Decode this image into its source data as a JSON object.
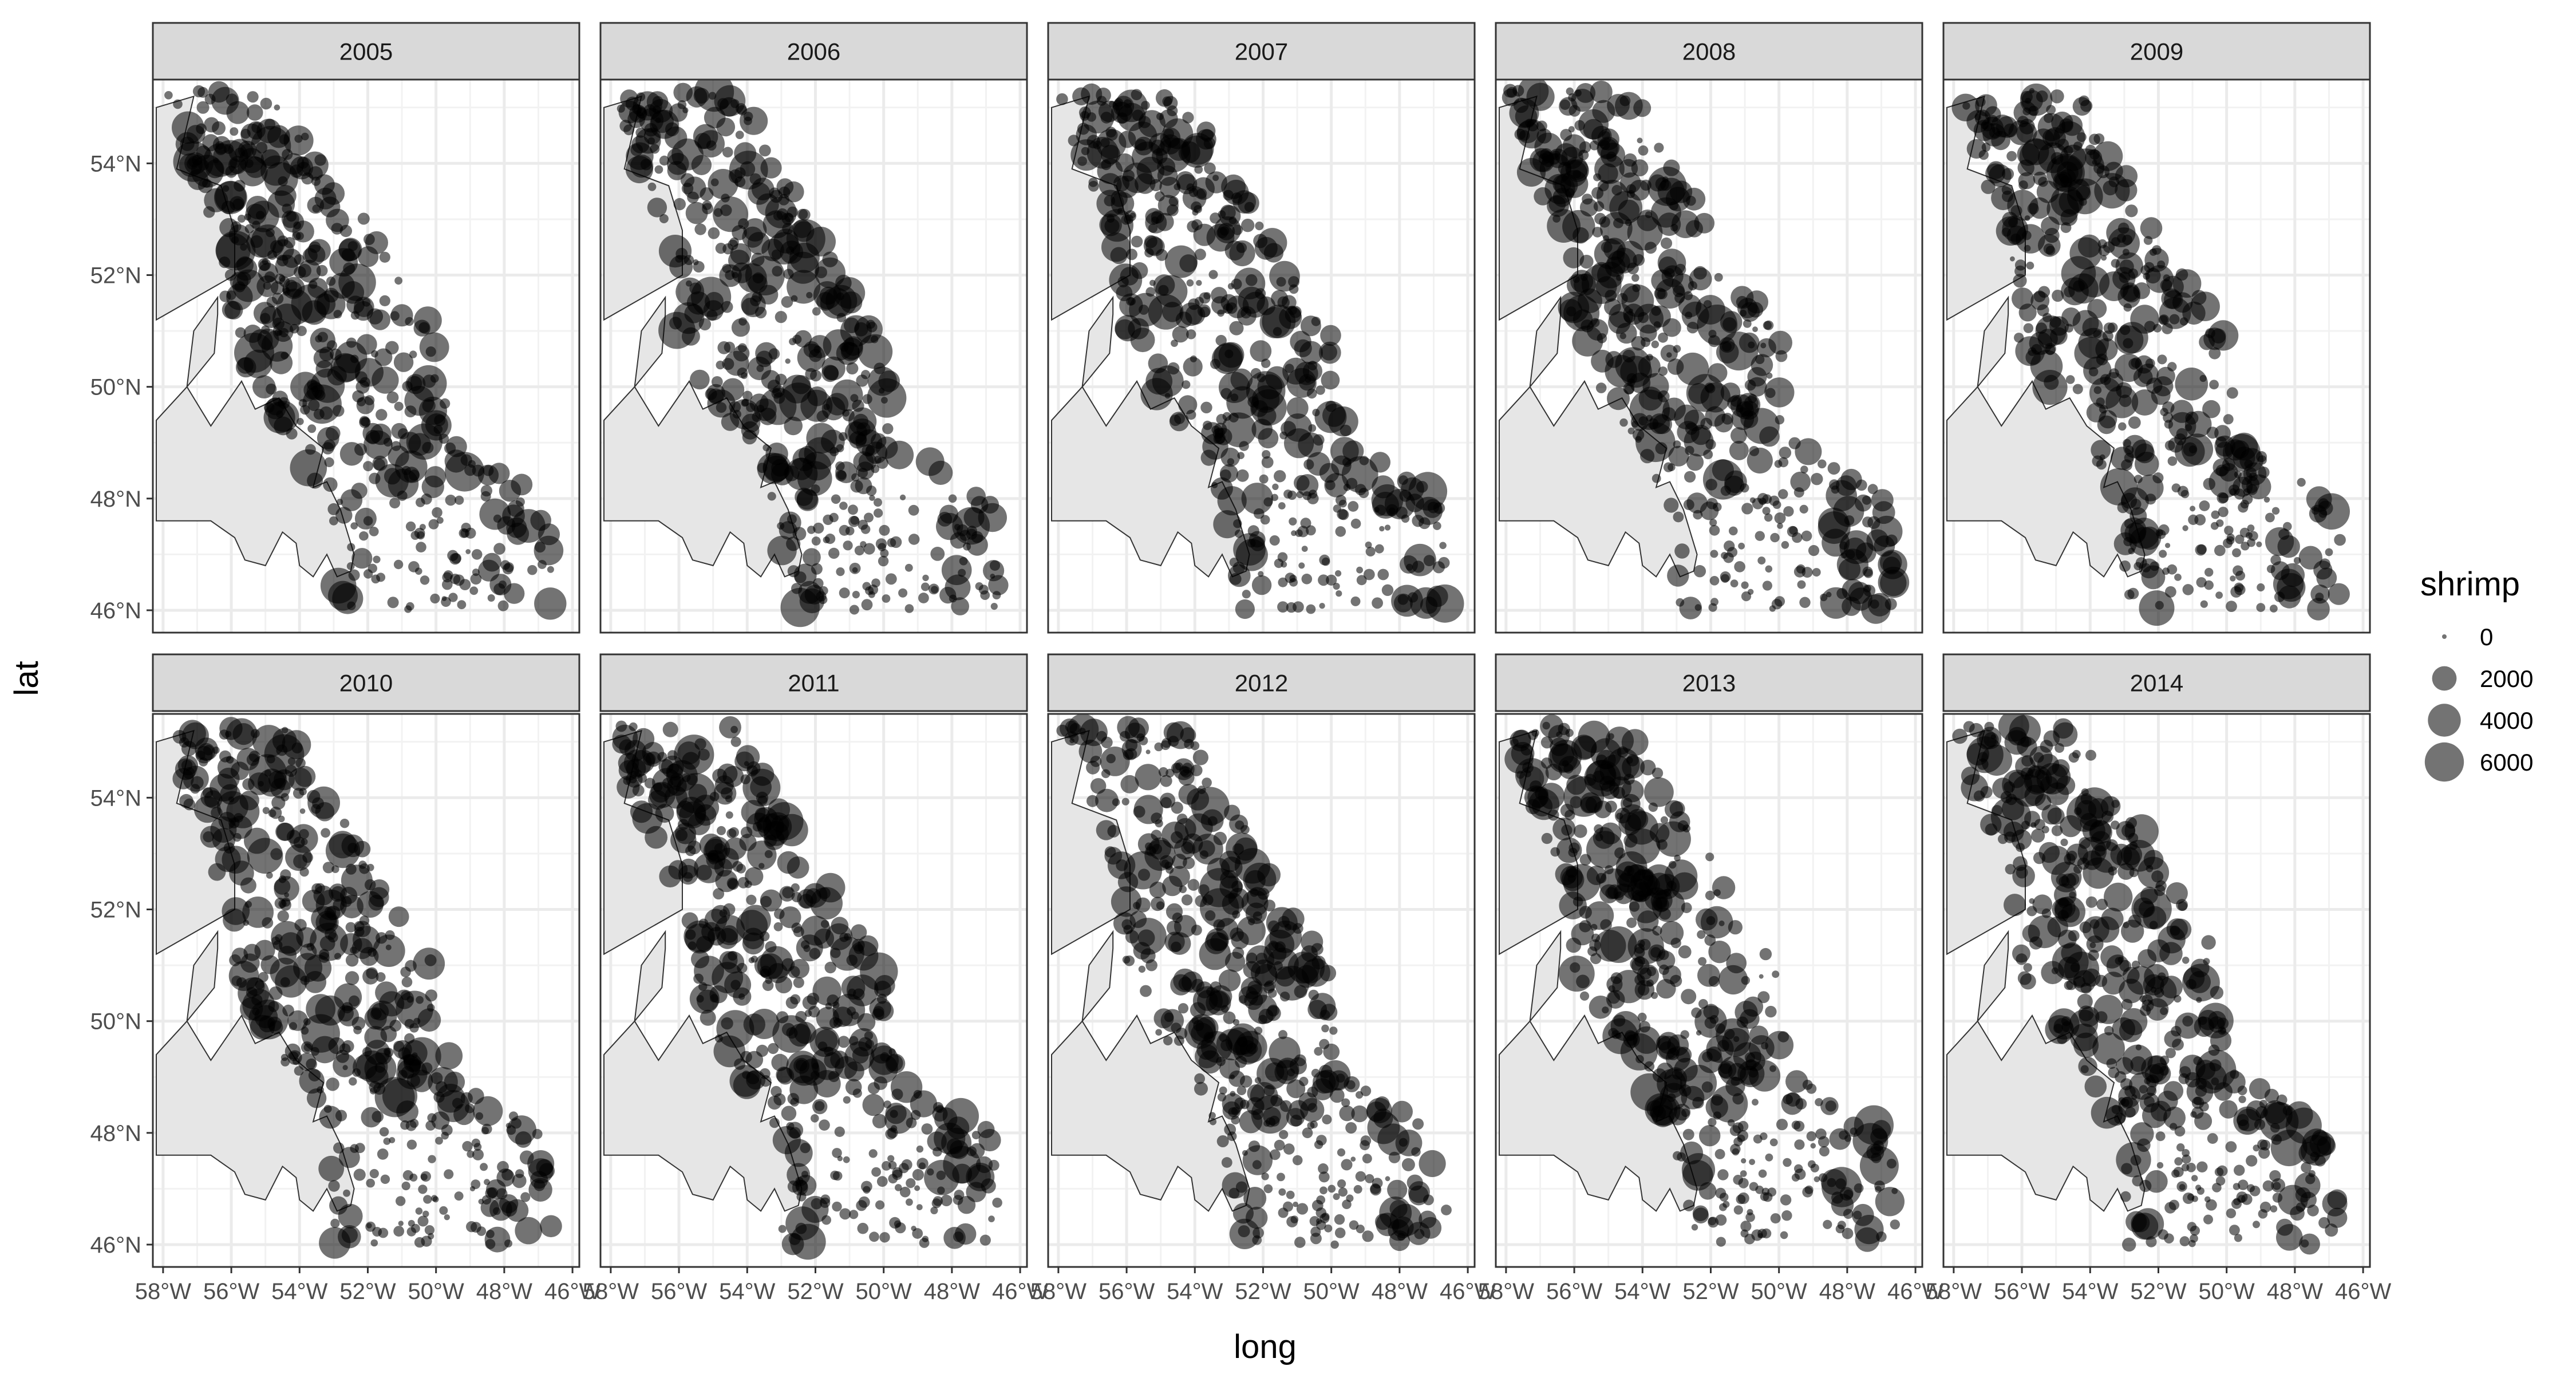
{
  "chart_data": {
    "type": "scatter",
    "facet_by": "year",
    "facets": [
      "2005",
      "2006",
      "2007",
      "2008",
      "2009",
      "2010",
      "2011",
      "2012",
      "2013",
      "2014"
    ],
    "xlabel": "long",
    "ylabel": "lat",
    "xlim": [
      -58.3,
      -45.8
    ],
    "ylim": [
      45.6,
      55.5
    ],
    "x_ticks": [
      -58,
      -56,
      -54,
      -52,
      -50,
      -48,
      -46
    ],
    "x_tick_labels": [
      "58°W",
      "56°W",
      "54°W",
      "52°W",
      "50°W",
      "48°W",
      "46°W"
    ],
    "y_ticks": [
      46,
      48,
      50,
      52,
      54
    ],
    "y_tick_labels": [
      "46°N",
      "48°N",
      "50°N",
      "52°N",
      "54°N"
    ],
    "grid": true,
    "size_legend": {
      "title": "shrimp",
      "placement": "right",
      "breaks": [
        0,
        2000,
        4000,
        6000
      ],
      "labels": [
        "0",
        "2000",
        "4000",
        "6000"
      ]
    },
    "land_polygon_lonlat": [
      [
        -58.2,
        55.0
      ],
      [
        -57.1,
        55.2
      ],
      [
        -57.6,
        53.9
      ],
      [
        -56.3,
        53.6
      ],
      [
        -55.9,
        52.8
      ],
      [
        -55.9,
        52.0
      ],
      [
        -58.2,
        51.2
      ],
      [
        -58.2,
        55.0
      ],
      null,
      [
        -58.2,
        47.6
      ],
      [
        -58.2,
        49.4
      ],
      [
        -57.3,
        50.0
      ],
      [
        -56.5,
        50.6
      ],
      [
        -56.4,
        51.3
      ],
      [
        -56.4,
        51.6
      ],
      [
        -57.1,
        51.0
      ],
      [
        -57.3,
        50.0
      ],
      [
        -56.6,
        49.3
      ],
      [
        -55.7,
        50.1
      ],
      [
        -55.3,
        49.6
      ],
      [
        -54.6,
        49.8
      ],
      [
        -54.1,
        49.3
      ],
      [
        -53.3,
        48.9
      ],
      [
        -53.6,
        48.2
      ],
      [
        -53.2,
        48.3
      ],
      [
        -52.8,
        47.8
      ],
      [
        -52.4,
        47.0
      ],
      [
        -52.5,
        46.7
      ],
      [
        -52.9,
        46.6
      ],
      [
        -53.2,
        47.0
      ],
      [
        -53.6,
        46.6
      ],
      [
        -54.0,
        46.8
      ],
      [
        -54.1,
        47.2
      ],
      [
        -54.5,
        47.4
      ],
      [
        -55.0,
        46.8
      ],
      [
        -55.6,
        46.9
      ],
      [
        -55.9,
        47.3
      ],
      [
        -56.6,
        47.6
      ],
      [
        -58.2,
        47.6
      ]
    ],
    "series": [
      {
        "name": "2005",
        "seed": 2005
      },
      {
        "name": "2006",
        "seed": 2006
      },
      {
        "name": "2007",
        "seed": 2007
      },
      {
        "name": "2008",
        "seed": 2008
      },
      {
        "name": "2009",
        "seed": 2009
      },
      {
        "name": "2010",
        "seed": 2010
      },
      {
        "name": "2011",
        "seed": 2011
      },
      {
        "name": "2012",
        "seed": 2012
      },
      {
        "name": "2013",
        "seed": 2013
      },
      {
        "name": "2014",
        "seed": 2014
      }
    ],
    "point_style": {
      "fill": "#000000",
      "opacity": 0.55
    }
  }
}
